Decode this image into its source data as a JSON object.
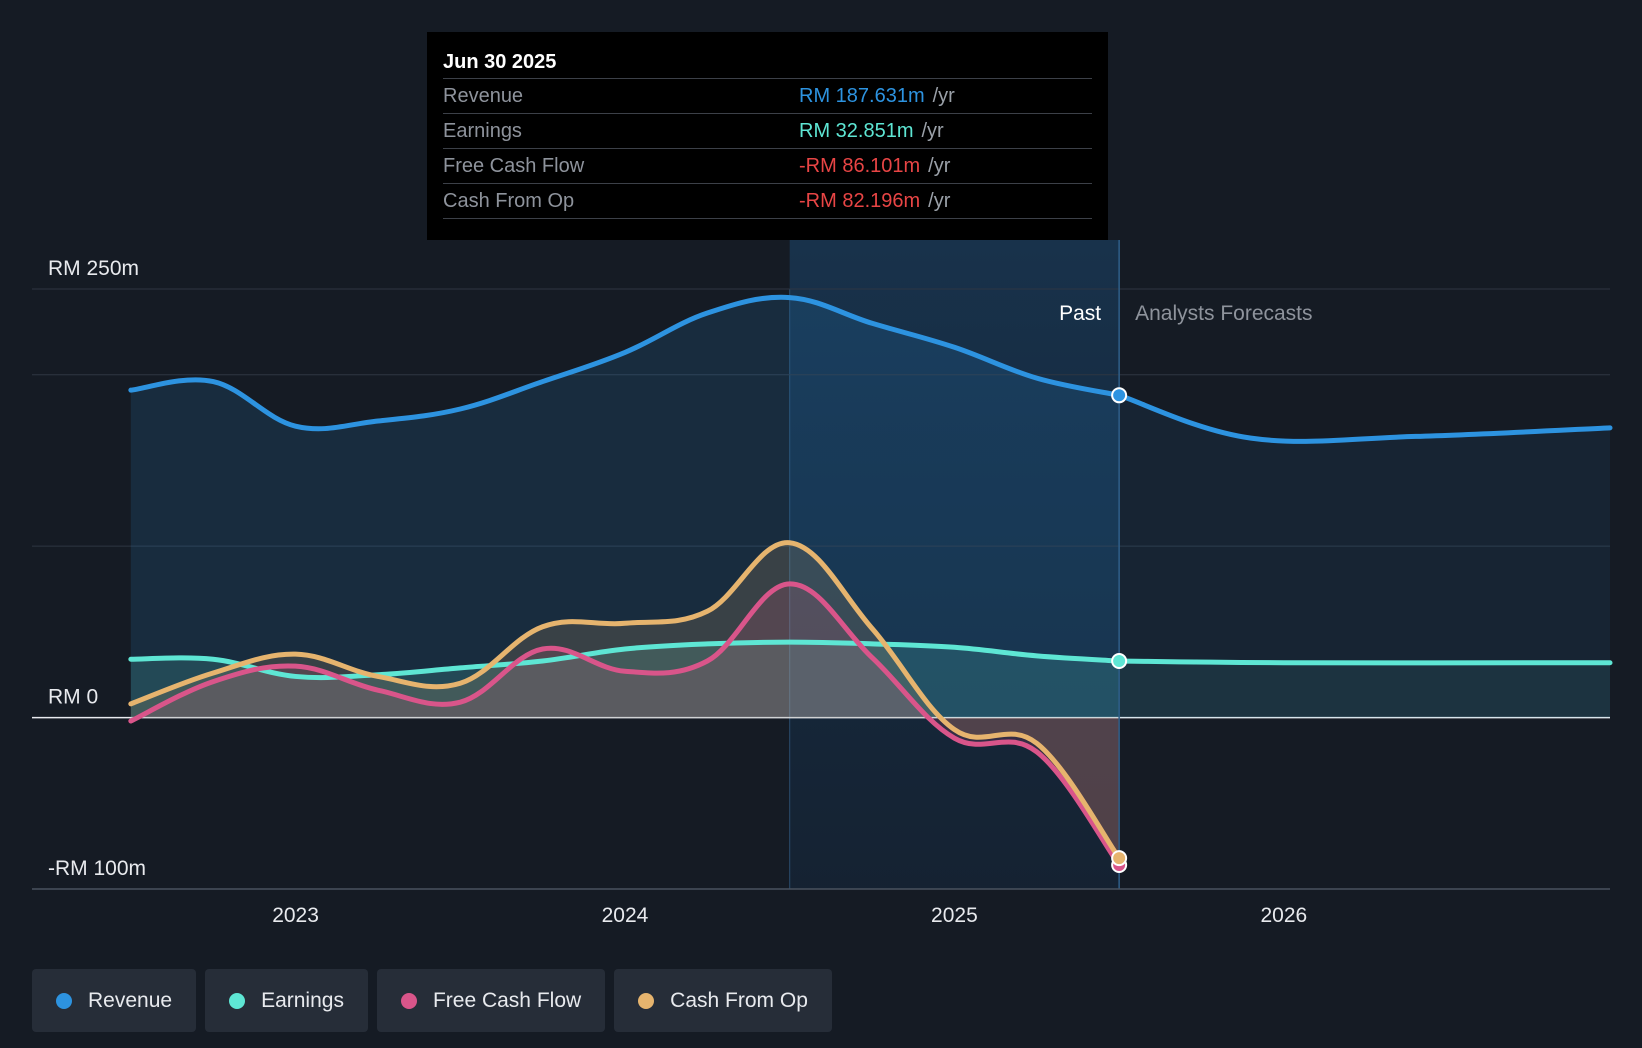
{
  "chart_data": {
    "type": "line",
    "title": "",
    "xlabel": "",
    "ylabel": "",
    "ylim": [
      -100,
      250
    ],
    "y_ticks": [
      {
        "value": 250,
        "label": "RM 250m"
      },
      {
        "value": 0,
        "label": "RM 0"
      },
      {
        "value": -100,
        "label": "-RM 100m"
      }
    ],
    "x_ticks": [
      {
        "value": 2023.0,
        "label": "2023"
      },
      {
        "value": 2024.0,
        "label": "2024"
      },
      {
        "value": 2025.0,
        "label": "2025"
      },
      {
        "value": 2026.0,
        "label": "2026"
      }
    ],
    "xlim": [
      2022.2,
      2026.99
    ],
    "divider_x": 2025.5,
    "highlight_start": 2024.5,
    "region_labels": {
      "past": "Past",
      "forecast": "Analysts Forecasts"
    },
    "series": [
      {
        "name": "Revenue",
        "color": "#2d93e0",
        "points": [
          [
            2022.5,
            191
          ],
          [
            2022.75,
            196
          ],
          [
            2023.0,
            170
          ],
          [
            2023.25,
            173
          ],
          [
            2023.5,
            180
          ],
          [
            2023.75,
            196
          ],
          [
            2024.0,
            213
          ],
          [
            2024.25,
            236
          ],
          [
            2024.5,
            245
          ],
          [
            2024.75,
            230
          ],
          [
            2025.0,
            216
          ],
          [
            2025.25,
            198
          ],
          [
            2025.5,
            188
          ]
        ],
        "forecast": [
          [
            2025.5,
            188
          ],
          [
            2025.9,
            163
          ],
          [
            2026.4,
            164
          ],
          [
            2026.99,
            169
          ]
        ]
      },
      {
        "name": "Earnings",
        "color": "#5ee6d4",
        "points": [
          [
            2022.5,
            34
          ],
          [
            2022.75,
            34
          ],
          [
            2023.0,
            24
          ],
          [
            2023.25,
            25
          ],
          [
            2023.5,
            29
          ],
          [
            2023.75,
            33
          ],
          [
            2024.0,
            40
          ],
          [
            2024.25,
            43
          ],
          [
            2024.5,
            44
          ],
          [
            2024.75,
            43
          ],
          [
            2025.0,
            41
          ],
          [
            2025.25,
            36
          ],
          [
            2025.5,
            33
          ]
        ],
        "forecast": [
          [
            2025.5,
            33
          ],
          [
            2026.0,
            32
          ],
          [
            2026.99,
            32
          ]
        ]
      },
      {
        "name": "Free Cash Flow",
        "color": "#d9558a",
        "points": [
          [
            2022.5,
            -2
          ],
          [
            2022.75,
            21
          ],
          [
            2023.0,
            30
          ],
          [
            2023.25,
            16
          ],
          [
            2023.5,
            9
          ],
          [
            2023.75,
            40
          ],
          [
            2024.0,
            27
          ],
          [
            2024.25,
            33
          ],
          [
            2024.5,
            78
          ],
          [
            2024.75,
            35
          ],
          [
            2025.0,
            -12
          ],
          [
            2025.25,
            -20
          ],
          [
            2025.5,
            -86
          ]
        ]
      },
      {
        "name": "Cash From Op",
        "color": "#e6b46e",
        "points": [
          [
            2022.5,
            8
          ],
          [
            2022.75,
            26
          ],
          [
            2023.0,
            37
          ],
          [
            2023.25,
            24
          ],
          [
            2023.5,
            20
          ],
          [
            2023.75,
            53
          ],
          [
            2024.0,
            55
          ],
          [
            2024.25,
            62
          ],
          [
            2024.5,
            102
          ],
          [
            2024.75,
            52
          ],
          [
            2025.0,
            -7
          ],
          [
            2025.25,
            -15
          ],
          [
            2025.5,
            -82
          ]
        ]
      }
    ]
  },
  "tooltip": {
    "date": "Jun 30 2025",
    "rows": [
      {
        "label": "Revenue",
        "value": "RM 187.631m",
        "unit": "/yr",
        "color": "#2d93e0"
      },
      {
        "label": "Earnings",
        "value": "RM 32.851m",
        "unit": "/yr",
        "color": "#5ee6d4"
      },
      {
        "label": "Free Cash Flow",
        "value": "-RM 86.101m",
        "unit": "/yr",
        "color": "#e84545"
      },
      {
        "label": "Cash From Op",
        "value": "-RM 82.196m",
        "unit": "/yr",
        "color": "#e84545"
      }
    ]
  },
  "legend": [
    {
      "label": "Revenue",
      "color": "#2d93e0"
    },
    {
      "label": "Earnings",
      "color": "#5ee6d4"
    },
    {
      "label": "Free Cash Flow",
      "color": "#d9558a"
    },
    {
      "label": "Cash From Op",
      "color": "#e6b46e"
    }
  ]
}
